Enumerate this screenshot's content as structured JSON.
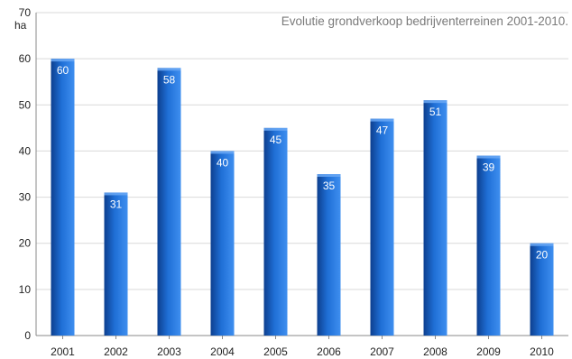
{
  "chart_data": {
    "type": "bar",
    "title": "Evolutie grondverkoop bedrijventerreinen 2001-2010.",
    "ylabel": "ha",
    "xlabel": "",
    "categories": [
      "2001",
      "2002",
      "2003",
      "2004",
      "2005",
      "2006",
      "2007",
      "2008",
      "2009",
      "2010"
    ],
    "values": [
      60,
      31,
      58,
      40,
      45,
      35,
      47,
      51,
      39,
      20
    ],
    "ylim": [
      0,
      70
    ],
    "yticks": [
      0,
      10,
      20,
      30,
      40,
      50,
      60,
      70
    ],
    "grid": true,
    "legend": "none",
    "colors": {
      "bar_dark": "#0d3f8f",
      "bar_mid": "#1f6fd6",
      "bar_light": "#3f8ff0",
      "grid": "#d9d9d9",
      "axis": "#888888"
    }
  }
}
